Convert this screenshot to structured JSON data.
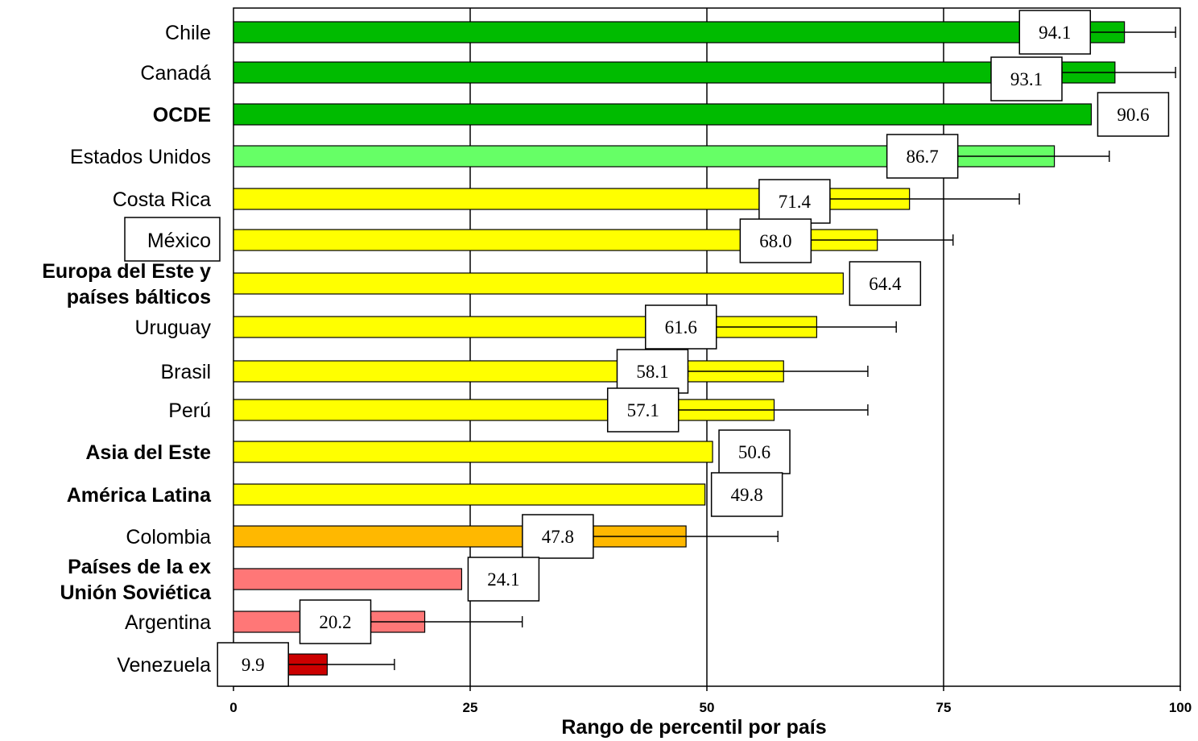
{
  "chart_data": {
    "type": "bar",
    "orientation": "horizontal",
    "title": "",
    "xlabel": "Rango de percentil por país",
    "ylabel": "",
    "xlim": [
      0,
      100
    ],
    "xticks": [
      0,
      25,
      50,
      75,
      100
    ],
    "grid": "vertical lines at 25, 50, 75",
    "categories": [
      {
        "label": [
          "Chile"
        ],
        "bold": false,
        "boxed": false,
        "value": 94.1,
        "value_label": "94.1",
        "err_low": 90.5,
        "err_high": 99.5,
        "color": "#00bb00"
      },
      {
        "label": [
          "Canadá"
        ],
        "bold": false,
        "boxed": false,
        "value": 93.1,
        "value_label": "93.1",
        "err_low": 87.5,
        "err_high": 99.5,
        "color": "#00bb00"
      },
      {
        "label": [
          "OCDE"
        ],
        "bold": true,
        "boxed": false,
        "value": 90.6,
        "value_label": "90.6",
        "err_low": null,
        "err_high": null,
        "color": "#00bb00"
      },
      {
        "label": [
          "Estados Unidos"
        ],
        "bold": false,
        "boxed": false,
        "value": 86.7,
        "value_label": "86.7",
        "err_low": 76.5,
        "err_high": 92.5,
        "color": "#66ff66"
      },
      {
        "label": [
          "Costa Rica"
        ],
        "bold": false,
        "boxed": false,
        "value": 71.4,
        "value_label": "71.4",
        "err_low": 63.0,
        "err_high": 83.0,
        "color": "#ffff00"
      },
      {
        "label": [
          "México"
        ],
        "bold": false,
        "boxed": true,
        "value": 68.0,
        "value_label": "68.0",
        "err_low": 61.0,
        "err_high": 76.0,
        "color": "#ffff00"
      },
      {
        "label": [
          "Europa del Este y",
          "países bálticos"
        ],
        "bold": true,
        "boxed": false,
        "value": 64.4,
        "value_label": "64.4",
        "err_low": null,
        "err_high": null,
        "color": "#ffff00"
      },
      {
        "label": [
          "Uruguay"
        ],
        "bold": false,
        "boxed": false,
        "value": 61.6,
        "value_label": "61.6",
        "err_low": 51.0,
        "err_high": 70.0,
        "color": "#ffff00"
      },
      {
        "label": [
          "Brasil"
        ],
        "bold": false,
        "boxed": false,
        "value": 58.1,
        "value_label": "58.1",
        "err_low": 48.0,
        "err_high": 67.0,
        "color": "#ffff00"
      },
      {
        "label": [
          "Perú"
        ],
        "bold": false,
        "boxed": false,
        "value": 57.1,
        "value_label": "57.1",
        "err_low": 47.0,
        "err_high": 67.0,
        "color": "#ffff00"
      },
      {
        "label": [
          "Asia del Este"
        ],
        "bold": true,
        "boxed": false,
        "value": 50.6,
        "value_label": "50.6",
        "err_low": null,
        "err_high": null,
        "color": "#ffff00"
      },
      {
        "label": [
          "América Latina"
        ],
        "bold": true,
        "boxed": false,
        "value": 49.8,
        "value_label": "49.8",
        "err_low": null,
        "err_high": null,
        "color": "#ffff00"
      },
      {
        "label": [
          "Colombia"
        ],
        "bold": false,
        "boxed": false,
        "value": 47.8,
        "value_label": "47.8",
        "err_low": 38.0,
        "err_high": 57.5,
        "color": "#ffb800"
      },
      {
        "label": [
          "Países de la ex",
          "Unión Soviética"
        ],
        "bold": true,
        "boxed": false,
        "value": 24.1,
        "value_label": "24.1",
        "err_low": null,
        "err_high": null,
        "color": "#ff7777"
      },
      {
        "label": [
          "Argentina"
        ],
        "bold": false,
        "boxed": false,
        "value": 20.2,
        "value_label": "20.2",
        "err_low": 14.5,
        "err_high": 30.5,
        "color": "#ff7777"
      },
      {
        "label": [
          "Venezuela"
        ],
        "bold": false,
        "boxed": false,
        "value": 9.9,
        "value_label": "9.9",
        "err_low": 5.8,
        "err_high": 17.0,
        "color": "#cc0000"
      }
    ]
  }
}
